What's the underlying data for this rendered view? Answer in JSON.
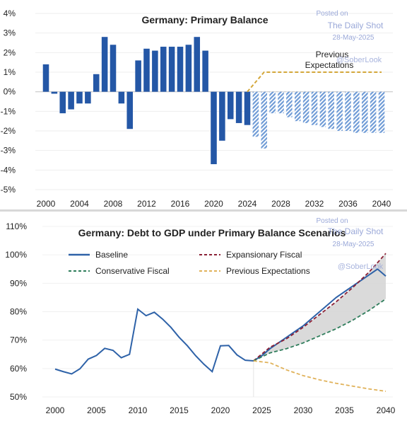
{
  "chart_data": [
    {
      "type": "bar",
      "title": "Germany: Primary Balance",
      "ylim": [
        -5,
        4
      ],
      "yticks": [
        "4%",
        "3%",
        "2%",
        "1%",
        "0%",
        "-1%",
        "-2%",
        "-3%",
        "-4%",
        "-5%"
      ],
      "yticks_values": [
        4,
        3,
        2,
        1,
        0,
        -1,
        -2,
        -3,
        -4,
        -5
      ],
      "xlim": [
        2000,
        2040
      ],
      "xticks": [
        "2000",
        "2004",
        "2008",
        "2012",
        "2016",
        "2020",
        "2024",
        "2028",
        "2032",
        "2036",
        "2040"
      ],
      "colors": {
        "actual": "#2457a6",
        "projected": "#7ea6dc",
        "expectations": "#d4a73a"
      },
      "series": [
        {
          "name": "",
          "style": "solid",
          "x": [
            2000,
            2001,
            2002,
            2003,
            2004,
            2005,
            2006,
            2007,
            2008,
            2009,
            2010,
            2011,
            2012,
            2013,
            2014,
            2015,
            2016,
            2017,
            2018,
            2019,
            2020,
            2021,
            2022,
            2023,
            2024
          ],
          "values": [
            1.4,
            -0.1,
            -1.1,
            -0.9,
            -0.6,
            -0.6,
            0.9,
            2.8,
            2.4,
            -0.6,
            -1.9,
            1.6,
            2.2,
            2.1,
            2.3,
            2.3,
            2.3,
            2.4,
            2.8,
            2.1,
            -3.7,
            -2.5,
            -1.4,
            -1.6,
            -1.7
          ]
        },
        {
          "name": "",
          "style": "hatched",
          "x": [
            2025,
            2026,
            2027,
            2028,
            2029,
            2030,
            2031,
            2032,
            2033,
            2034,
            2035,
            2036,
            2037,
            2038,
            2039,
            2040
          ],
          "values": [
            -2.3,
            -2.9,
            -1.1,
            -1.1,
            -1.3,
            -1.5,
            -1.6,
            -1.7,
            -1.8,
            -1.9,
            -2.0,
            -2.0,
            -2.1,
            -2.1,
            -2.1,
            -2.1
          ]
        },
        {
          "name": "Previous Expectations",
          "style": "dashed-line",
          "x": [
            2024,
            2026,
            2040
          ],
          "values": [
            0,
            1.0,
            1.0
          ]
        }
      ],
      "annotations": [
        {
          "text": "Previous\nExpectations",
          "lines": [
            "Previous",
            "Expectations"
          ]
        }
      ]
    },
    {
      "type": "line",
      "title": "Germany: Debt to GDP under Primary Balance Scenarios",
      "ylim": [
        50,
        110
      ],
      "yticks": [
        "110%",
        "100%",
        "90%",
        "80%",
        "70%",
        "60%",
        "50%"
      ],
      "yticks_values": [
        110,
        100,
        90,
        80,
        70,
        60,
        50
      ],
      "xlim": [
        2000,
        2040
      ],
      "xticks": [
        "2000",
        "2005",
        "2010",
        "2015",
        "2020",
        "2025",
        "2030",
        "2035",
        "2040"
      ],
      "legend": [
        "Baseline",
        "Expansionary Fiscal",
        "Conservative Fiscal",
        "Previous Expectations"
      ],
      "legend_position": "top",
      "band_fill": "#d4d4d4",
      "series": [
        {
          "name": "Baseline",
          "color": "#2e62a8",
          "style": "solid",
          "x": [
            2000,
            2001,
            2002,
            2003,
            2004,
            2005,
            2006,
            2007,
            2008,
            2009,
            2010,
            2011,
            2012,
            2013,
            2014,
            2015,
            2016,
            2017,
            2018,
            2019,
            2020,
            2021,
            2022,
            2023,
            2024,
            2025,
            2026,
            2027,
            2028,
            2029,
            2030,
            2031,
            2032,
            2033,
            2034,
            2035,
            2036,
            2037,
            2038,
            2039,
            2040
          ],
          "values": [
            59.8,
            58.9,
            58.1,
            59.9,
            63.3,
            64.6,
            67.1,
            66.4,
            63.8,
            65.0,
            80.9,
            78.6,
            79.8,
            77.4,
            74.5,
            71.0,
            68.0,
            64.5,
            61.5,
            58.9,
            68.0,
            68.1,
            64.8,
            62.9,
            62.7,
            64.5,
            67.0,
            69.0,
            71.0,
            73.0,
            75.0,
            77.5,
            80.0,
            82.5,
            85.0,
            87.0,
            89.0,
            91.0,
            93.0,
            95.0,
            92.5
          ]
        },
        {
          "name": "Expansionary Fiscal",
          "color": "#8b2035",
          "style": "dashed",
          "x": [
            2024,
            2026,
            2028,
            2030,
            2032,
            2034,
            2036,
            2038,
            2040
          ],
          "values": [
            62.7,
            67.5,
            70.5,
            74.5,
            79.0,
            83.5,
            88.5,
            94.0,
            100.5
          ]
        },
        {
          "name": "Conservative Fiscal",
          "color": "#2e7d5b",
          "style": "dashed",
          "x": [
            2024,
            2026,
            2028,
            2030,
            2032,
            2034,
            2036,
            2038,
            2040
          ],
          "values": [
            62.7,
            65.5,
            67.0,
            69.0,
            71.5,
            74.0,
            77.0,
            80.5,
            84.5
          ]
        },
        {
          "name": "Previous Expectations",
          "color": "#e0b25a",
          "style": "dashed",
          "x": [
            2024,
            2026,
            2028,
            2030,
            2032,
            2034,
            2036,
            2038,
            2040
          ],
          "values": [
            62.7,
            62.0,
            59.5,
            57.5,
            56.0,
            54.8,
            53.8,
            52.8,
            52.0
          ]
        }
      ]
    }
  ],
  "watermarks": [
    {
      "posted": "Posted on",
      "source": "The Daily Shot",
      "date": "28-May-2025",
      "handle": "@SoberLook"
    },
    {
      "posted": "Posted on",
      "source": "The Daily Shot",
      "date": "28-May-2025",
      "handle": "@SoberLook"
    }
  ]
}
